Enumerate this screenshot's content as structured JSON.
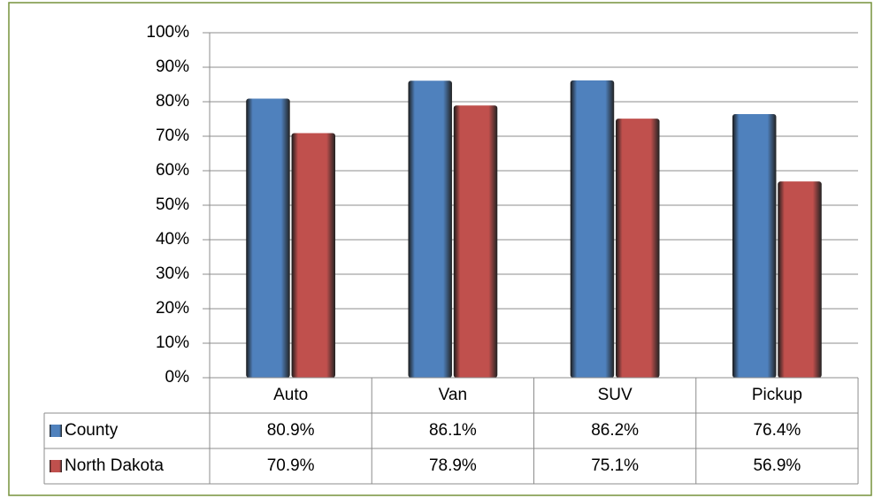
{
  "chart_data": {
    "type": "bar",
    "categories": [
      "Auto",
      "Van",
      "SUV",
      "Pickup"
    ],
    "series": [
      {
        "name": "County",
        "color": "#4f81bd",
        "values": [
          80.9,
          86.1,
          86.2,
          76.4
        ],
        "value_labels": [
          "80.9%",
          "86.1%",
          "86.2%",
          "76.4%"
        ]
      },
      {
        "name": "North Dakota",
        "color": "#c0504d",
        "values": [
          70.9,
          78.9,
          75.1,
          56.9
        ],
        "value_labels": [
          "70.9%",
          "78.9%",
          "75.1%",
          "56.9%"
        ]
      }
    ],
    "ylim": [
      0,
      100
    ],
    "yticks": [
      {
        "value": 0,
        "label": "0%"
      },
      {
        "value": 10,
        "label": "10%"
      },
      {
        "value": 20,
        "label": "20%"
      },
      {
        "value": 30,
        "label": "30%"
      },
      {
        "value": 40,
        "label": "40%"
      },
      {
        "value": 50,
        "label": "50%"
      },
      {
        "value": 60,
        "label": "60%"
      },
      {
        "value": 70,
        "label": "70%"
      },
      {
        "value": 80,
        "label": "80%"
      },
      {
        "value": 90,
        "label": "90%"
      },
      {
        "value": 100,
        "label": "100%"
      }
    ],
    "grid": true
  }
}
